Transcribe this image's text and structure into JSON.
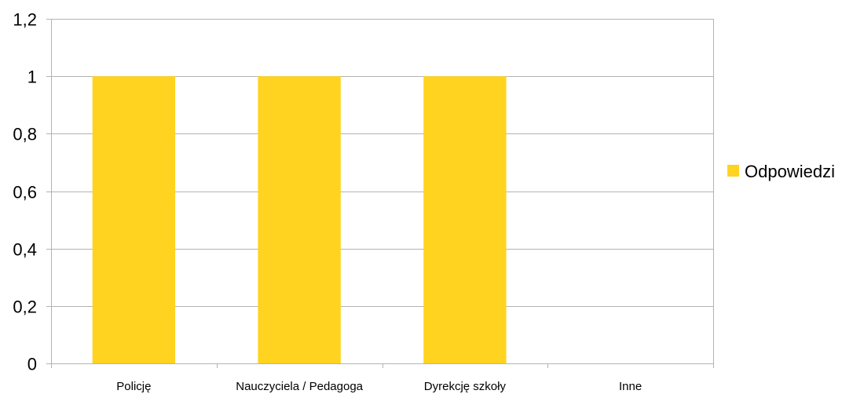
{
  "chart_data": {
    "type": "bar",
    "categories": [
      "Policję",
      "Nauczyciela / Pedagoga",
      "Dyrekcję szkoły",
      "Inne"
    ],
    "series": [
      {
        "name": "Odpowiedzi",
        "values": [
          1,
          1,
          1,
          0
        ],
        "color": "#ffd320"
      }
    ],
    "ylim": [
      0,
      1.2
    ],
    "yticks": [
      "0",
      "0,2",
      "0,4",
      "0,6",
      "0,8",
      "1",
      "1,2"
    ],
    "ytick_values": [
      0,
      0.2,
      0.4,
      0.6,
      0.8,
      1,
      1.2
    ],
    "grid": true,
    "legend_position": "right",
    "grid_color": "#b3b3b3"
  }
}
